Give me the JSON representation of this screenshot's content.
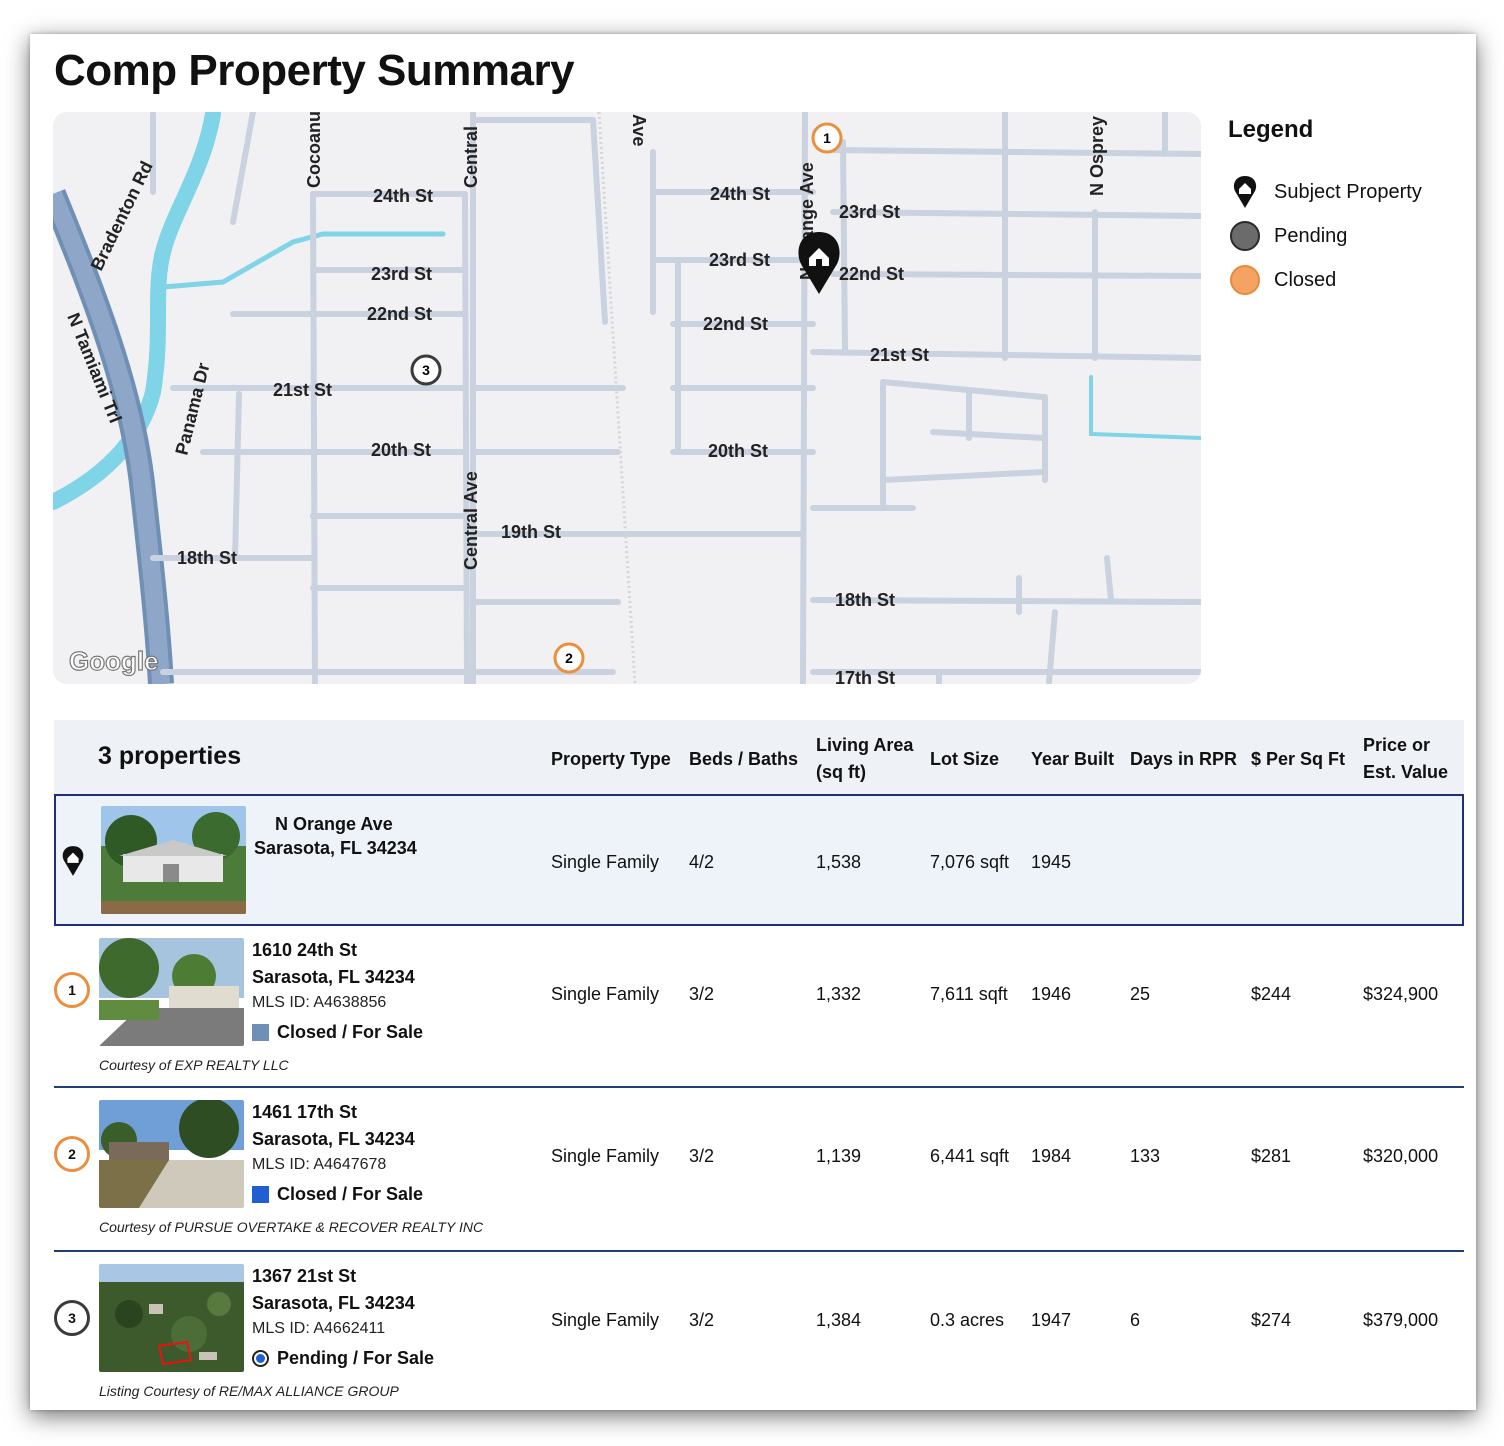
{
  "page": {
    "title": "Comp Property Summary"
  },
  "map": {
    "attribution": "Google",
    "streets": {
      "bradenton_rd": "Bradenton Rd",
      "tamiami": "N Tamiami Trl",
      "panama": "Panama Dr",
      "cocoanut": "Cocoanut",
      "central_top": "Central",
      "central_ave": "Central Ave",
      "ave_top": "Ave",
      "orange": "N Orange Ave",
      "osprey": "N Osprey",
      "s24_left": "24th St",
      "s23_left": "23rd St",
      "s22_left": "22nd St",
      "s21_left": "21st St",
      "s20_left": "20th St",
      "s19": "19th St",
      "s18_left": "18th St",
      "s24_mid": "24th St",
      "s23_mid": "23rd St",
      "s22_mid": "22nd St",
      "s20_mid": "20th St",
      "s23_right": "23rd St",
      "s22_right": "22nd St",
      "s21_right": "21st St",
      "s18_right": "18th St",
      "s17_right": "17th St"
    },
    "markers": [
      "1",
      "2",
      "3"
    ]
  },
  "legend": {
    "title": "Legend",
    "items": [
      {
        "label": "Subject Property",
        "icon": "home-pin-icon"
      },
      {
        "label": "Pending",
        "color": "#6b6b6b"
      },
      {
        "label": "Closed",
        "color": "#f4a363"
      }
    ]
  },
  "table": {
    "count_label": "3 properties",
    "headers": {
      "property_type": "Property Type",
      "beds_baths": "Beds / Baths",
      "living_area_1": "Living Area",
      "living_area_2": "(sq ft)",
      "lot_size": "Lot Size",
      "year_built": "Year Built",
      "days_rpr": "Days in RPR",
      "per_sqft": "$ Per Sq Ft",
      "price_1": "Price or",
      "price_2": "Est. Value"
    },
    "subject": {
      "street": "N    Orange    Ave",
      "city": "Sarasota, FL 34234",
      "type": "Single Family",
      "beds_baths": "4/2",
      "living_area": "1,538",
      "lot_size": "7,076 sqft",
      "year_built": "1945"
    },
    "comps": [
      {
        "num": "1",
        "street": "1610 24th St",
        "city": "Sarasota, FL 34234",
        "mls": "MLS ID: A4638856",
        "status": "Closed / For Sale",
        "courtesy": "Courtesy of EXP REALTY LLC",
        "type": "Single Family",
        "beds_baths": "3/2",
        "living_area": "1,332",
        "lot_size": "7,611 sqft",
        "year_built": "1946",
        "days": "25",
        "per_sqft": "$244",
        "price": "$324,900"
      },
      {
        "num": "2",
        "street": "1461 17th St",
        "city": "Sarasota, FL 34234",
        "mls": "MLS ID: A4647678",
        "status": "Closed / For Sale",
        "courtesy": "Courtesy of PURSUE OVERTAKE & RECOVER REALTY INC",
        "type": "Single Family",
        "beds_baths": "3/2",
        "living_area": "1,139",
        "lot_size": "6,441 sqft",
        "year_built": "1984",
        "days": "133",
        "per_sqft": "$281",
        "price": "$320,000"
      },
      {
        "num": "3",
        "street": "1367 21st St",
        "city": "Sarasota, FL 34234",
        "mls": "MLS ID: A4662411",
        "status": "Pending / For Sale",
        "courtesy": "Listing Courtesy of RE/MAX ALLIANCE GROUP",
        "type": "Single Family",
        "beds_baths": "3/2",
        "living_area": "1,384",
        "lot_size": "0.3 acres",
        "year_built": "1947",
        "days": "6",
        "per_sqft": "$274",
        "price": "$379,000"
      }
    ]
  },
  "colors": {
    "closed_marker": "#ec8f3d",
    "pending_marker": "#3a3a3a",
    "closed_status_1": "#6f8fb4",
    "closed_status_2": "#1f5fd1",
    "pending_status": "#1f5fd1",
    "row_divider": "#1f3f7a"
  }
}
